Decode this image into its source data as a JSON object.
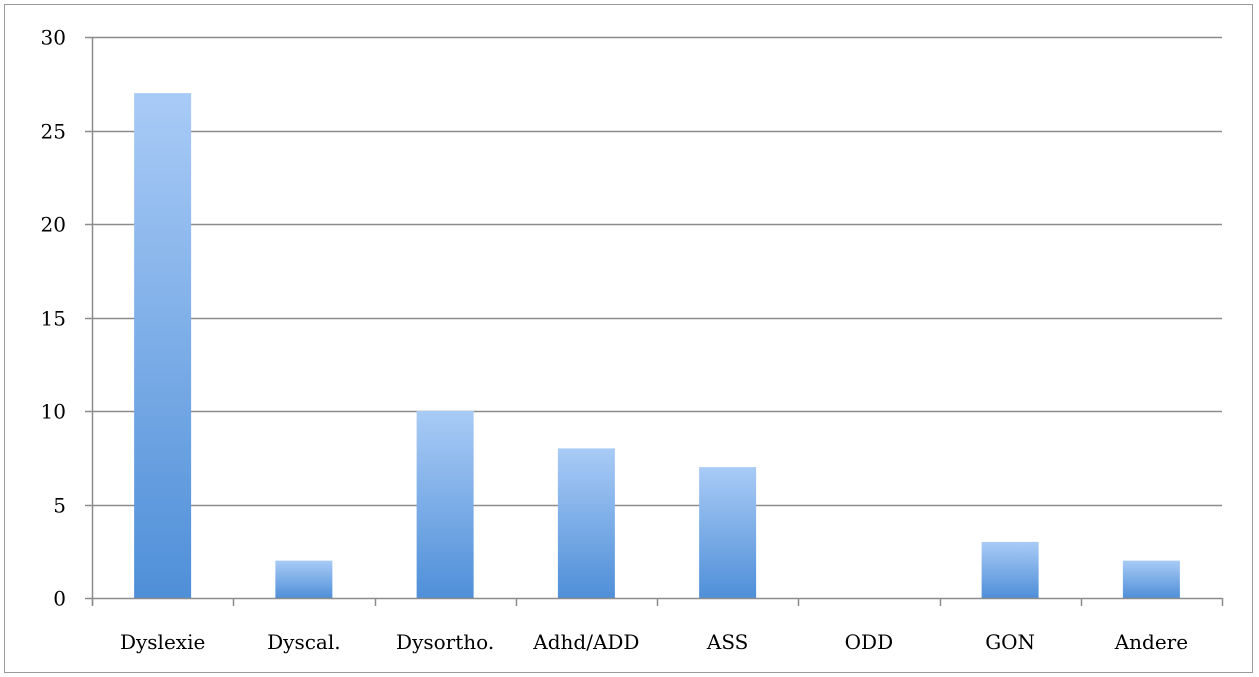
{
  "chart_data": {
    "type": "bar",
    "categories": [
      "Dyslexie",
      "Dyscal.",
      "Dysortho.",
      "Adhd/ADD",
      "ASS",
      "ODD",
      "GON",
      "Andere"
    ],
    "values": [
      27,
      2,
      10,
      8,
      7,
      0,
      3,
      2
    ],
    "ylim": [
      0,
      30
    ],
    "yticks": [
      "0",
      "5",
      "10",
      "15",
      "20",
      "25",
      "30"
    ],
    "grid": true,
    "legend": "none",
    "colors": {
      "bar_top": "#a9cbf6",
      "bar_bottom": "#4f8fd8",
      "grid": "#8c8c8c",
      "axis": "#8c8c8c"
    }
  }
}
